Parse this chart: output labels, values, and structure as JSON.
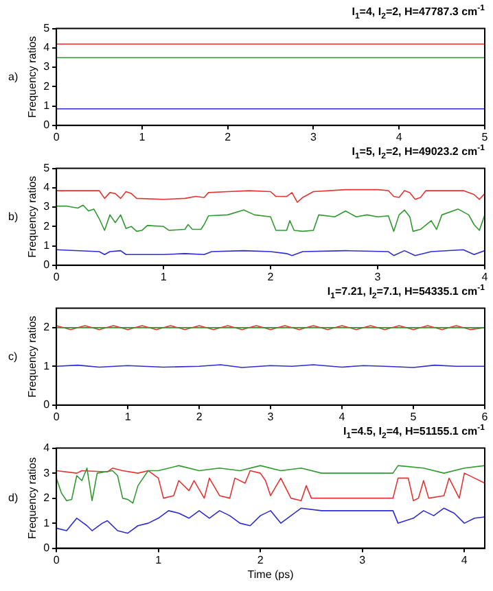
{
  "chart_data": [
    {
      "type": "line",
      "title": "I$_{1}$=4, I$_{2}$=2, H=47787.3 cm$^{-1}$",
      "ylabel": "Frequency ratios",
      "annotations": [
        "a)"
      ],
      "xlim": [
        0,
        5
      ],
      "xticks": [
        0,
        1,
        2,
        3,
        4,
        5
      ],
      "ylim": [
        0,
        5
      ],
      "yticks": [
        0,
        1,
        2,
        3,
        4,
        5
      ],
      "marker": "none",
      "series": [
        {
          "color": "#e8312f",
          "x": [
            0,
            5
          ],
          "values": [
            4.2,
            4.2
          ]
        },
        {
          "color": "#2e9a2e",
          "x": [
            0,
            5
          ],
          "values": [
            3.5,
            3.5
          ]
        },
        {
          "color": "#2b2bd6",
          "x": [
            0,
            5
          ],
          "values": [
            0.85,
            0.85
          ]
        }
      ]
    },
    {
      "type": "line",
      "title": "I$_{1}$=5, I$_{2}$=2, H=49023.2 cm$^{-1}$",
      "ylabel": "Frequency ratios",
      "annotations": [
        "b)"
      ],
      "xlim": [
        0,
        4
      ],
      "xticks": [
        0,
        1,
        2,
        3,
        4
      ],
      "ylim": [
        0,
        5
      ],
      "yticks": [
        0,
        1,
        2,
        3,
        4,
        5
      ],
      "marker": "none",
      "series": [
        {
          "color": "#e8312f",
          "x": [
            0,
            0.4,
            0.45,
            0.5,
            0.55,
            0.6,
            0.65,
            0.7,
            0.75,
            1.0,
            1.2,
            1.3,
            1.38,
            1.42,
            1.6,
            1.8,
            2.0,
            2.05,
            2.15,
            2.2,
            2.25,
            2.3,
            2.4,
            2.7,
            3.0,
            3.1,
            3.15,
            3.2,
            3.25,
            3.3,
            3.35,
            3.4,
            3.45,
            3.8,
            3.9,
            3.95,
            4.0
          ],
          "values": [
            3.85,
            3.85,
            3.45,
            3.75,
            3.7,
            3.45,
            3.8,
            3.7,
            3.45,
            3.4,
            3.45,
            3.55,
            3.5,
            3.75,
            3.8,
            3.85,
            3.8,
            3.55,
            3.55,
            3.75,
            3.25,
            3.5,
            3.8,
            3.9,
            3.9,
            3.85,
            3.55,
            3.5,
            3.85,
            3.75,
            3.4,
            3.5,
            3.85,
            3.85,
            3.65,
            3.4,
            3.7
          ]
        },
        {
          "color": "#2e9a2e",
          "x": [
            0,
            0.1,
            0.2,
            0.25,
            0.3,
            0.35,
            0.4,
            0.45,
            0.5,
            0.55,
            0.6,
            0.65,
            0.7,
            0.75,
            0.8,
            0.85,
            1.0,
            1.05,
            1.2,
            1.23,
            1.27,
            1.35,
            1.38,
            1.42,
            1.6,
            1.75,
            1.85,
            2.0,
            2.05,
            2.15,
            2.18,
            2.22,
            2.3,
            2.4,
            2.45,
            2.6,
            2.7,
            2.8,
            2.9,
            3.0,
            3.1,
            3.15,
            3.2,
            3.25,
            3.3,
            3.33,
            3.4,
            3.5,
            3.55,
            3.6,
            3.75,
            3.85,
            3.9,
            3.95,
            4.0
          ],
          "values": [
            3.05,
            3.05,
            2.95,
            3.1,
            2.8,
            2.9,
            2.4,
            1.8,
            2.6,
            2.2,
            2.6,
            1.9,
            2.0,
            1.75,
            1.8,
            2.05,
            2.0,
            1.8,
            1.85,
            2.1,
            1.85,
            1.85,
            2.1,
            2.55,
            2.6,
            2.85,
            2.6,
            2.5,
            1.8,
            1.8,
            2.3,
            1.8,
            1.75,
            1.8,
            2.6,
            2.5,
            2.8,
            2.5,
            2.6,
            2.5,
            2.55,
            1.75,
            2.6,
            2.85,
            2.5,
            1.75,
            1.85,
            2.3,
            1.85,
            2.6,
            2.9,
            2.6,
            2.1,
            1.8,
            2.6
          ]
        },
        {
          "color": "#2b2bd6",
          "x": [
            0,
            0.4,
            0.45,
            0.5,
            0.6,
            0.65,
            1.0,
            1.2,
            1.38,
            1.45,
            1.75,
            2.0,
            2.15,
            2.2,
            2.3,
            2.7,
            3.1,
            3.15,
            3.25,
            3.35,
            3.5,
            3.8,
            3.9,
            4.0
          ],
          "values": [
            0.8,
            0.7,
            0.55,
            0.7,
            0.75,
            0.55,
            0.55,
            0.6,
            0.55,
            0.7,
            0.75,
            0.7,
            0.6,
            0.5,
            0.7,
            0.75,
            0.7,
            0.5,
            0.75,
            0.5,
            0.7,
            0.8,
            0.55,
            0.75
          ]
        }
      ]
    },
    {
      "type": "line",
      "title": "I$_{1}$=7.21, I$_{2}$=7.1, H=54335.1 cm$^{-1}$",
      "ylabel": "Frequency ratios",
      "annotations": [
        "c)"
      ],
      "xlim": [
        0,
        6
      ],
      "xticks": [
        0,
        1,
        2,
        3,
        4,
        5,
        6
      ],
      "ylim": [
        0,
        2.5
      ],
      "yticks": [
        0,
        1,
        2
      ],
      "marker": "none",
      "series": [
        {
          "color": "#2e9a2e",
          "x": [
            0,
            6
          ],
          "values": [
            2.0,
            2.0
          ]
        },
        {
          "color": "#e8312f",
          "x": [
            0,
            0.2,
            0.4,
            0.6,
            0.8,
            1.0,
            1.2,
            1.4,
            1.6,
            1.8,
            2.0,
            2.2,
            2.4,
            2.6,
            2.8,
            3.0,
            3.2,
            3.4,
            3.6,
            3.8,
            4.0,
            4.2,
            4.4,
            4.6,
            4.8,
            5.0,
            5.2,
            5.4,
            5.6,
            5.8,
            6.0
          ],
          "values": [
            2.05,
            1.95,
            2.05,
            1.95,
            2.05,
            1.95,
            2.05,
            1.95,
            2.05,
            1.95,
            2.05,
            1.95,
            2.05,
            1.95,
            2.05,
            1.95,
            2.05,
            1.95,
            2.05,
            1.95,
            2.05,
            1.95,
            2.05,
            1.95,
            2.05,
            1.95,
            2.05,
            1.95,
            2.05,
            1.95,
            2.0
          ]
        },
        {
          "color": "#2b2bd6",
          "x": [
            0,
            0.3,
            0.6,
            1.0,
            1.5,
            2.0,
            2.3,
            2.6,
            3.0,
            3.3,
            3.6,
            4.0,
            4.3,
            4.6,
            5.0,
            5.3,
            5.6,
            6.0
          ],
          "values": [
            1.0,
            1.03,
            0.98,
            1.02,
            0.98,
            1.0,
            1.04,
            0.97,
            1.02,
            1.0,
            1.04,
            0.98,
            1.02,
            1.0,
            0.97,
            1.03,
            1.0,
            1.0
          ]
        }
      ]
    },
    {
      "type": "line",
      "title": "I$_{1}$=4.5, I$_{2}$=4, H=51155.1 cm$^{-1}$",
      "xlabel": "Time (ps)",
      "ylabel": "Frequency ratios",
      "annotations": [
        "d)"
      ],
      "xlim": [
        0,
        4.2
      ],
      "xticks": [
        0,
        1,
        2,
        3,
        4
      ],
      "ylim": [
        0,
        4
      ],
      "yticks": [
        0,
        1,
        2,
        3,
        4
      ],
      "marker": "none",
      "series": [
        {
          "color": "#2e9a2e",
          "x": [
            0,
            0.05,
            0.1,
            0.15,
            0.2,
            0.25,
            0.3,
            0.35,
            0.4,
            0.55,
            0.6,
            0.65,
            0.7,
            0.75,
            0.8,
            0.85,
            0.9,
            1.0,
            1.2,
            1.4,
            1.6,
            1.8,
            2.0,
            2.2,
            2.4,
            2.6,
            3.0,
            3.3,
            3.35,
            3.6,
            3.8,
            4.0,
            4.2
          ],
          "values": [
            2.8,
            2.2,
            1.9,
            1.95,
            2.9,
            2.7,
            3.2,
            1.9,
            3.0,
            3.1,
            2.9,
            2.0,
            1.95,
            1.8,
            2.5,
            2.8,
            3.1,
            3.1,
            3.3,
            3.1,
            3.2,
            3.1,
            3.3,
            3.1,
            3.2,
            3.0,
            3.0,
            3.0,
            3.3,
            3.2,
            3.0,
            3.2,
            3.3
          ]
        },
        {
          "color": "#e8312f",
          "x": [
            0,
            0.2,
            0.25,
            0.5,
            0.55,
            0.65,
            0.8,
            0.9,
            1.0,
            1.05,
            1.15,
            1.2,
            1.3,
            1.35,
            1.45,
            1.5,
            1.6,
            1.7,
            1.75,
            1.85,
            1.9,
            2.0,
            2.05,
            2.1,
            2.2,
            2.3,
            2.4,
            2.45,
            2.5,
            2.7,
            3.0,
            3.3,
            3.35,
            3.45,
            3.5,
            3.55,
            3.6,
            3.65,
            3.8,
            3.85,
            3.95,
            4.0,
            4.1,
            4.2
          ],
          "values": [
            3.1,
            3.0,
            3.1,
            3.05,
            3.2,
            3.1,
            3.0,
            3.1,
            2.8,
            2.0,
            2.1,
            2.7,
            2.3,
            2.7,
            2.0,
            2.8,
            2.1,
            2.0,
            2.8,
            2.6,
            3.1,
            3.0,
            2.7,
            2.1,
            2.8,
            2.0,
            1.9,
            2.5,
            2.0,
            2.0,
            2.0,
            2.0,
            2.8,
            2.8,
            1.9,
            2.0,
            2.7,
            2.0,
            2.1,
            2.8,
            2.0,
            3.0,
            2.8,
            2.6
          ]
        },
        {
          "color": "#2b2bd6",
          "x": [
            0,
            0.1,
            0.2,
            0.3,
            0.35,
            0.45,
            0.5,
            0.6,
            0.7,
            0.8,
            0.9,
            1.0,
            1.1,
            1.2,
            1.3,
            1.4,
            1.5,
            1.6,
            1.7,
            1.8,
            1.9,
            2.0,
            2.1,
            2.2,
            2.3,
            2.4,
            2.6,
            3.0,
            3.3,
            3.35,
            3.5,
            3.6,
            3.7,
            3.8,
            3.9,
            4.0,
            4.1,
            4.2
          ],
          "values": [
            0.8,
            0.7,
            1.2,
            0.9,
            0.7,
            1.0,
            1.1,
            0.7,
            0.6,
            0.9,
            1.0,
            1.2,
            1.5,
            1.4,
            1.2,
            1.5,
            1.2,
            1.5,
            1.3,
            1.0,
            0.9,
            1.3,
            1.5,
            1.0,
            1.3,
            1.6,
            1.5,
            1.5,
            1.5,
            1.0,
            1.2,
            1.5,
            1.3,
            1.6,
            1.4,
            1.0,
            1.2,
            1.25
          ]
        }
      ]
    }
  ]
}
